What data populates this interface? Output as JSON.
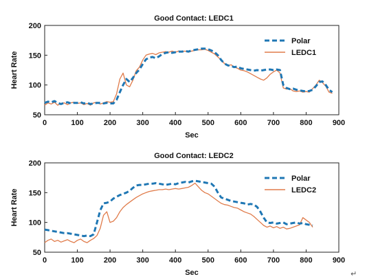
{
  "colors": {
    "polar": "#1f77b4",
    "ledc": "#e07b4a",
    "axis": "#222222"
  },
  "end_mark": "↵",
  "chart_data": [
    {
      "type": "line",
      "title": "Good Contact: LEDC1",
      "xlabel": "Sec",
      "ylabel": "Heart Rate",
      "xlim": [
        0,
        900
      ],
      "ylim": [
        50,
        200
      ],
      "xticks": [
        0,
        100,
        200,
        300,
        400,
        500,
        600,
        700,
        800,
        900
      ],
      "yticks": [
        50,
        100,
        150,
        200
      ],
      "grid": false,
      "legend_position": "top-right",
      "series": [
        {
          "name": "Polar",
          "style": "dashed",
          "color": "#1f77b4",
          "x": [
            0,
            10,
            20,
            30,
            40,
            50,
            60,
            70,
            80,
            90,
            100,
            110,
            120,
            130,
            140,
            150,
            160,
            170,
            180,
            190,
            200,
            210,
            220,
            230,
            240,
            250,
            260,
            270,
            280,
            290,
            300,
            310,
            320,
            330,
            340,
            350,
            360,
            370,
            380,
            390,
            400,
            410,
            420,
            430,
            440,
            450,
            460,
            470,
            480,
            490,
            500,
            510,
            520,
            530,
            540,
            550,
            560,
            570,
            580,
            590,
            600,
            610,
            620,
            630,
            640,
            650,
            660,
            670,
            680,
            690,
            700,
            710,
            720,
            730,
            740,
            750,
            760,
            770,
            780,
            790,
            800,
            810,
            820,
            830,
            840,
            850,
            860,
            870,
            880
          ],
          "y": [
            70,
            72,
            71,
            73,
            70,
            68,
            70,
            71,
            69,
            70,
            70,
            71,
            69,
            70,
            68,
            69,
            70,
            70,
            69,
            70,
            69,
            69,
            75,
            88,
            100,
            110,
            105,
            112,
            120,
            126,
            135,
            143,
            146,
            147,
            145,
            148,
            152,
            154,
            155,
            154,
            155,
            156,
            156,
            157,
            156,
            158,
            159,
            160,
            161,
            161,
            160,
            158,
            155,
            150,
            142,
            136,
            133,
            132,
            130,
            131,
            128,
            127,
            126,
            125,
            124,
            125,
            124,
            125,
            126,
            126,
            125,
            126,
            125,
            100,
            95,
            93,
            94,
            92,
            91,
            90,
            89,
            90,
            92,
            98,
            105,
            106,
            100,
            92,
            88
          ]
        },
        {
          "name": "LEDC1",
          "style": "solid",
          "color": "#e07b4a",
          "x": [
            0,
            10,
            20,
            30,
            40,
            50,
            60,
            70,
            80,
            90,
            100,
            110,
            120,
            130,
            140,
            150,
            160,
            170,
            180,
            190,
            200,
            210,
            220,
            230,
            240,
            250,
            260,
            270,
            280,
            290,
            300,
            310,
            320,
            330,
            340,
            350,
            360,
            370,
            380,
            390,
            400,
            410,
            420,
            430,
            440,
            450,
            460,
            470,
            480,
            490,
            500,
            510,
            520,
            530,
            540,
            550,
            560,
            570,
            580,
            590,
            600,
            610,
            620,
            630,
            640,
            650,
            660,
            670,
            680,
            690,
            700,
            710,
            720,
            730,
            740,
            750,
            760,
            770,
            780,
            790,
            800,
            810,
            820,
            830,
            840,
            850,
            860,
            870,
            880
          ],
          "y": [
            66,
            70,
            68,
            71,
            66,
            69,
            70,
            67,
            70,
            71,
            69,
            70,
            67,
            69,
            66,
            70,
            71,
            68,
            70,
            72,
            71,
            72,
            85,
            110,
            120,
            100,
            97,
            108,
            124,
            130,
            142,
            150,
            152,
            153,
            151,
            154,
            155,
            156,
            155,
            157,
            155,
            157,
            156,
            157,
            155,
            157,
            158,
            159,
            159,
            160,
            158,
            155,
            152,
            147,
            142,
            136,
            132,
            134,
            130,
            128,
            125,
            124,
            122,
            119,
            116,
            113,
            110,
            108,
            112,
            118,
            122,
            125,
            120,
            95,
            93,
            94,
            90,
            89,
            90,
            88,
            89,
            88,
            94,
            100,
            108,
            104,
            98,
            88,
            86
          ]
        }
      ]
    },
    {
      "type": "line",
      "title": "Good Contact: LEDC2",
      "xlabel": "Sec",
      "ylabel": "Heart Rate",
      "xlim": [
        0,
        900
      ],
      "ylim": [
        50,
        200
      ],
      "xticks": [
        0,
        100,
        200,
        300,
        400,
        500,
        600,
        700,
        800,
        900
      ],
      "yticks": [
        50,
        100,
        150,
        200
      ],
      "grid": false,
      "legend_position": "top-right",
      "series": [
        {
          "name": "Polar",
          "style": "dashed",
          "color": "#1f77b4",
          "x": [
            0,
            10,
            20,
            30,
            40,
            50,
            60,
            70,
            80,
            90,
            100,
            110,
            120,
            130,
            140,
            150,
            160,
            170,
            180,
            190,
            200,
            210,
            220,
            230,
            240,
            250,
            260,
            270,
            280,
            290,
            300,
            310,
            320,
            330,
            340,
            350,
            360,
            370,
            380,
            390,
            400,
            410,
            420,
            430,
            440,
            450,
            460,
            470,
            480,
            490,
            500,
            510,
            520,
            530,
            540,
            550,
            560,
            570,
            580,
            590,
            600,
            610,
            620,
            630,
            640,
            650,
            660,
            670,
            680,
            690,
            700,
            710,
            720,
            730,
            740,
            750,
            760,
            770,
            780,
            790,
            800,
            810,
            820
          ],
          "y": [
            88,
            87,
            86,
            85,
            84,
            83,
            82,
            82,
            81,
            80,
            79,
            78,
            77,
            78,
            77,
            80,
            100,
            120,
            132,
            133,
            135,
            140,
            143,
            146,
            148,
            150,
            153,
            158,
            162,
            163,
            163,
            164,
            165,
            165,
            166,
            165,
            164,
            163,
            164,
            165,
            164,
            166,
            167,
            168,
            167,
            169,
            170,
            169,
            168,
            167,
            166,
            165,
            160,
            150,
            142,
            140,
            138,
            136,
            135,
            134,
            133,
            132,
            130,
            131,
            130,
            126,
            118,
            108,
            100,
            99,
            100,
            98,
            99,
            100,
            97,
            98,
            99,
            100,
            98,
            99,
            97,
            96,
            95
          ]
        },
        {
          "name": "LEDC2",
          "style": "solid",
          "color": "#e07b4a",
          "x": [
            0,
            10,
            20,
            30,
            40,
            50,
            60,
            70,
            80,
            90,
            100,
            110,
            120,
            130,
            140,
            150,
            160,
            170,
            180,
            190,
            200,
            210,
            220,
            230,
            240,
            250,
            260,
            270,
            280,
            290,
            300,
            310,
            320,
            330,
            340,
            350,
            360,
            370,
            380,
            390,
            400,
            410,
            420,
            430,
            440,
            450,
            460,
            470,
            480,
            490,
            500,
            510,
            520,
            530,
            540,
            550,
            560,
            570,
            580,
            590,
            600,
            610,
            620,
            630,
            640,
            650,
            660,
            670,
            680,
            690,
            700,
            710,
            720,
            730,
            740,
            750,
            760,
            770,
            780,
            790,
            800,
            810,
            820
          ],
          "y": [
            66,
            70,
            72,
            68,
            70,
            67,
            69,
            71,
            68,
            66,
            70,
            72,
            68,
            66,
            70,
            73,
            78,
            90,
            112,
            118,
            100,
            102,
            108,
            118,
            125,
            130,
            134,
            138,
            142,
            145,
            148,
            150,
            152,
            153,
            154,
            155,
            155,
            156,
            155,
            156,
            157,
            156,
            157,
            158,
            159,
            162,
            166,
            160,
            154,
            150,
            148,
            144,
            140,
            136,
            132,
            130,
            129,
            127,
            125,
            124,
            121,
            118,
            116,
            114,
            110,
            105,
            100,
            95,
            92,
            94,
            91,
            93,
            90,
            92,
            89,
            90,
            92,
            94,
            96,
            108,
            104,
            100,
            92
          ]
        }
      ]
    }
  ]
}
